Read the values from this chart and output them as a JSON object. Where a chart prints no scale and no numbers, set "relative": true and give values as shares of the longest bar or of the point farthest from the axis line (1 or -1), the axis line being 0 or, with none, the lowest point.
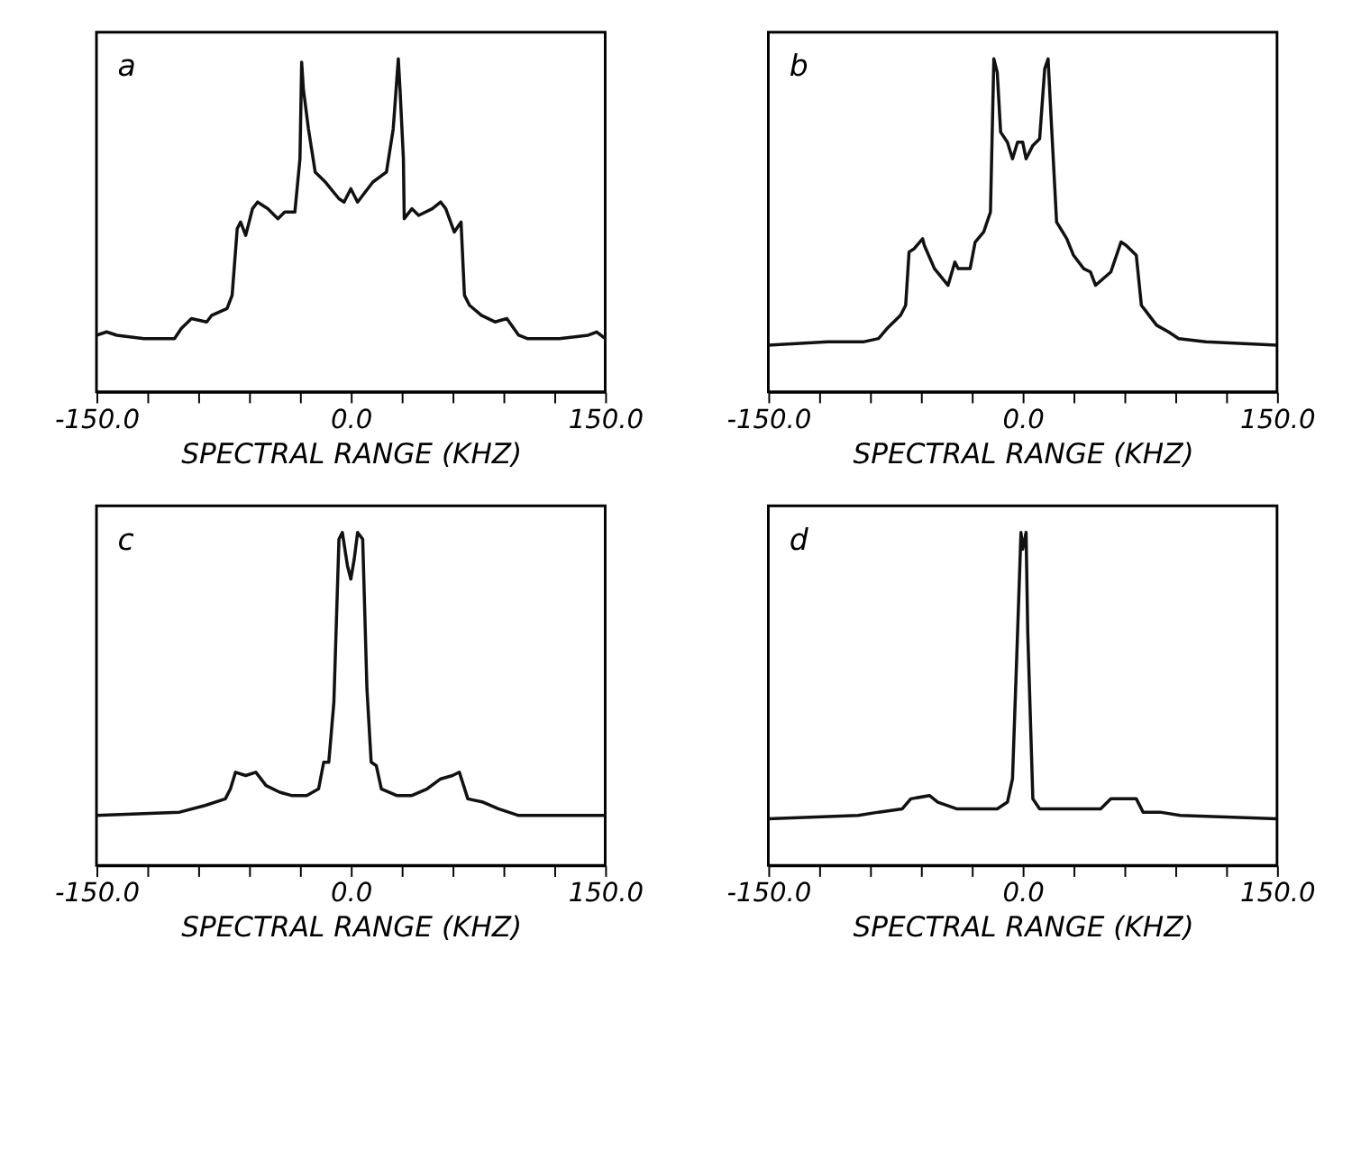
{
  "chart_data": [
    {
      "type": "line",
      "relative": true,
      "xlabel": "SPECTRAL RANGE (KHZ)",
      "annotations": [
        "a"
      ],
      "grid": false,
      "xlim": [
        -150,
        150
      ],
      "xticks": [
        {
          "value": -150,
          "label": "-150.0"
        },
        {
          "value": -120,
          "label": null
        },
        {
          "value": -90,
          "label": null
        },
        {
          "value": -60,
          "label": null
        },
        {
          "value": -30,
          "label": null
        },
        {
          "value": 0,
          "label": "0.0"
        },
        {
          "value": 30,
          "label": null
        },
        {
          "value": 60,
          "label": null
        },
        {
          "value": 90,
          "label": null
        },
        {
          "value": 120,
          "label": null
        },
        {
          "value": 150,
          "label": "150.0"
        }
      ],
      "series": [
        {
          "color": "#111111",
          "x": [
            -150,
            -144,
            -138,
            -122,
            -104,
            -100,
            -94,
            -85,
            -82,
            -73,
            -70,
            -67,
            -65,
            -62,
            -58,
            -55,
            -49,
            -43,
            -39,
            -33,
            -30,
            -29,
            -28,
            -25,
            -21,
            -15,
            -7,
            -4,
            0,
            4,
            7,
            13,
            21,
            25,
            28,
            29,
            31,
            31.5,
            36,
            40,
            48,
            53,
            56,
            61,
            65,
            67,
            70,
            77,
            85,
            92,
            99,
            104,
            123,
            140,
            145,
            150
          ],
          "values": [
            0.17,
            0.18,
            0.17,
            0.16,
            0.16,
            0.19,
            0.22,
            0.21,
            0.23,
            0.25,
            0.29,
            0.49,
            0.51,
            0.47,
            0.55,
            0.57,
            0.55,
            0.52,
            0.54,
            0.54,
            0.7,
            0.99,
            0.91,
            0.79,
            0.66,
            0.63,
            0.58,
            0.57,
            0.61,
            0.57,
            0.59,
            0.63,
            0.66,
            0.79,
            1.0,
            0.91,
            0.7,
            0.52,
            0.55,
            0.53,
            0.55,
            0.57,
            0.55,
            0.48,
            0.51,
            0.29,
            0.26,
            0.23,
            0.21,
            0.22,
            0.17,
            0.16,
            0.16,
            0.17,
            0.18,
            0.16
          ]
        }
      ]
    },
    {
      "type": "line",
      "relative": true,
      "xlabel": "SPECTRAL RANGE (KHZ)",
      "annotations": [
        "b"
      ],
      "grid": false,
      "xlim": [
        -150,
        150
      ],
      "xticks": [
        {
          "value": -150,
          "label": "-150.0"
        },
        {
          "value": -120,
          "label": null
        },
        {
          "value": -90,
          "label": null
        },
        {
          "value": -60,
          "label": null
        },
        {
          "value": -30,
          "label": null
        },
        {
          "value": 0,
          "label": "0.0"
        },
        {
          "value": 30,
          "label": null
        },
        {
          "value": 60,
          "label": null
        },
        {
          "value": 90,
          "label": null
        },
        {
          "value": 120,
          "label": null
        },
        {
          "value": 150,
          "label": "150.0"
        }
      ],
      "series": [
        {
          "color": "#111111",
          "x": [
            -150,
            -115,
            -94,
            -85,
            -80,
            -72,
            -69,
            -67,
            -64,
            -59,
            -58,
            -52,
            -44,
            -40,
            -38,
            -31,
            -28,
            -23,
            -19,
            -17,
            -15,
            -13,
            -9,
            -6,
            -3,
            0,
            2,
            6,
            10,
            13,
            15,
            17,
            20,
            26,
            30,
            36,
            40,
            43,
            52,
            58,
            61,
            67,
            70,
            79,
            86,
            92,
            108,
            150
          ],
          "values": [
            0.14,
            0.15,
            0.15,
            0.16,
            0.19,
            0.23,
            0.26,
            0.42,
            0.43,
            0.46,
            0.44,
            0.37,
            0.32,
            0.39,
            0.37,
            0.37,
            0.45,
            0.48,
            0.54,
            1.0,
            0.96,
            0.78,
            0.75,
            0.7,
            0.75,
            0.75,
            0.7,
            0.74,
            0.76,
            0.97,
            1.0,
            0.8,
            0.51,
            0.46,
            0.41,
            0.37,
            0.36,
            0.32,
            0.36,
            0.45,
            0.44,
            0.41,
            0.26,
            0.2,
            0.18,
            0.16,
            0.15,
            0.14
          ]
        }
      ]
    },
    {
      "type": "line",
      "relative": true,
      "xlabel": "SPECTRAL RANGE (KHZ)",
      "annotations": [
        "c"
      ],
      "grid": false,
      "xlim": [
        -150,
        150
      ],
      "xticks": [
        {
          "value": -150,
          "label": "-150.0"
        },
        {
          "value": -120,
          "label": null
        },
        {
          "value": -90,
          "label": null
        },
        {
          "value": -60,
          "label": null
        },
        {
          "value": -30,
          "label": null
        },
        {
          "value": 0,
          "label": "0.0"
        },
        {
          "value": 30,
          "label": null
        },
        {
          "value": 60,
          "label": null
        },
        {
          "value": 90,
          "label": null
        },
        {
          "value": 120,
          "label": null
        },
        {
          "value": 150,
          "label": "150.0"
        }
      ],
      "series": [
        {
          "color": "#111111",
          "x": [
            -150,
            -101,
            -86,
            -74,
            -71,
            -68,
            -62,
            -56,
            -50,
            -42,
            -35,
            -26,
            -19,
            -16,
            -13,
            -10,
            -7,
            -5,
            -2,
            0,
            2,
            4,
            7,
            9.5,
            12,
            15,
            18,
            27,
            36,
            45,
            53,
            60,
            64,
            69,
            78,
            87,
            99,
            150
          ],
          "values": [
            0.15,
            0.16,
            0.18,
            0.2,
            0.23,
            0.28,
            0.27,
            0.28,
            0.24,
            0.22,
            0.21,
            0.21,
            0.23,
            0.31,
            0.31,
            0.49,
            0.98,
            1.0,
            0.9,
            0.86,
            0.92,
            1.0,
            0.98,
            0.53,
            0.31,
            0.3,
            0.23,
            0.21,
            0.21,
            0.23,
            0.26,
            0.27,
            0.28,
            0.2,
            0.19,
            0.17,
            0.15,
            0.15
          ]
        }
      ]
    },
    {
      "type": "line",
      "relative": true,
      "xlabel": "SPECTRAL RANGE (KHZ)",
      "annotations": [
        "d"
      ],
      "grid": false,
      "xlim": [
        -150,
        150
      ],
      "xticks": [
        {
          "value": -150,
          "label": "-150.0"
        },
        {
          "value": -120,
          "label": null
        },
        {
          "value": -90,
          "label": null
        },
        {
          "value": -60,
          "label": null
        },
        {
          "value": -30,
          "label": null
        },
        {
          "value": 0,
          "label": "0.0"
        },
        {
          "value": 30,
          "label": null
        },
        {
          "value": 60,
          "label": null
        },
        {
          "value": 90,
          "label": null
        },
        {
          "value": 120,
          "label": null
        },
        {
          "value": 150,
          "label": "150.0"
        }
      ],
      "series": [
        {
          "color": "#111111",
          "x": [
            -150,
            -97,
            -85,
            -71,
            -66,
            -55,
            -50,
            -39,
            -27,
            -15,
            -9,
            -6,
            -3,
            -1,
            0,
            2,
            3,
            6,
            10,
            20,
            32,
            46,
            52,
            58,
            67,
            71,
            81,
            93,
            150
          ],
          "values": [
            0.14,
            0.15,
            0.16,
            0.17,
            0.2,
            0.21,
            0.19,
            0.17,
            0.17,
            0.17,
            0.19,
            0.26,
            0.7,
            1.0,
            0.95,
            1.0,
            0.7,
            0.2,
            0.17,
            0.17,
            0.17,
            0.17,
            0.2,
            0.2,
            0.2,
            0.16,
            0.16,
            0.15,
            0.14
          ]
        }
      ]
    }
  ]
}
